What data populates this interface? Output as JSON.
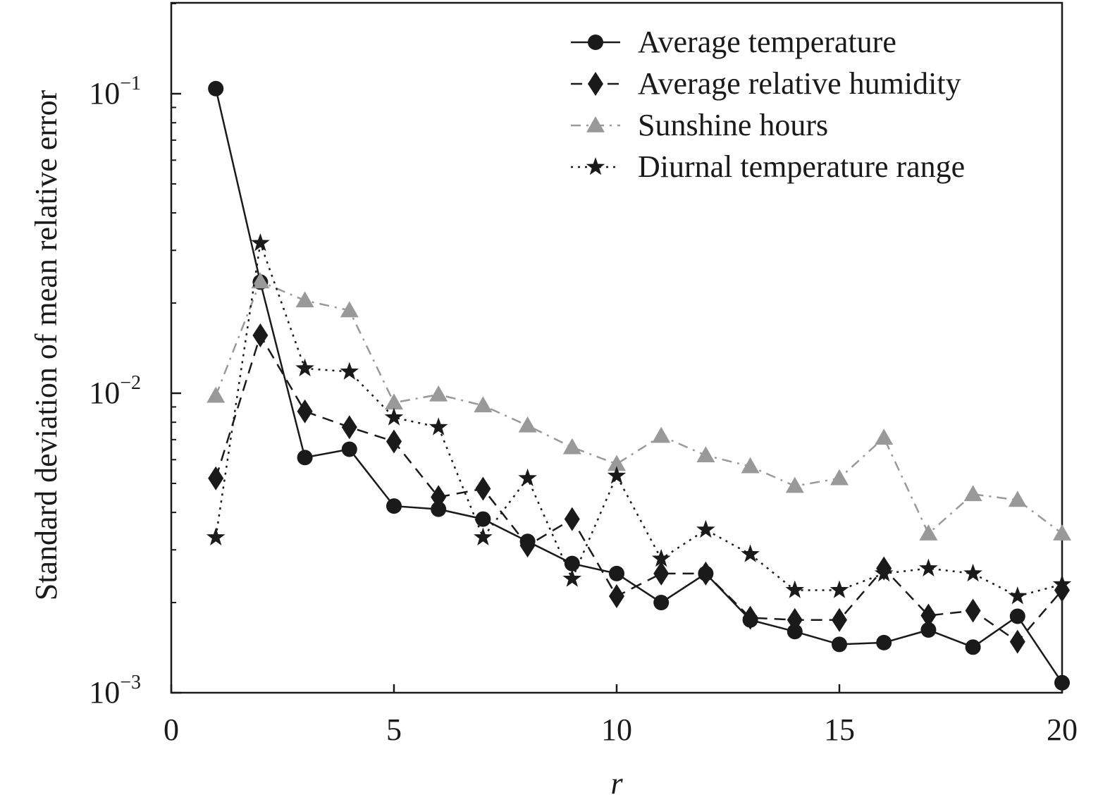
{
  "chart_data": {
    "type": "line",
    "title": "",
    "xlabel": "r",
    "ylabel": "Standard deviation of mean relative error",
    "yscale": "log",
    "xlim": [
      0,
      20
    ],
    "ylim": [
      0.001,
      0.2
    ],
    "x_ticks": [
      0,
      5,
      10,
      15,
      20
    ],
    "x_tick_labels": [
      "0",
      "5",
      "10",
      "15",
      "20"
    ],
    "y_ticks": [
      0.1,
      0.01,
      0.001
    ],
    "y_tick_labels": [
      {
        "base": "10",
        "exp": "−1"
      },
      {
        "base": "10",
        "exp": "−2"
      },
      {
        "base": "10",
        "exp": "−3"
      }
    ],
    "grid": false,
    "legend_position": "top-right",
    "x": [
      1,
      2,
      3,
      4,
      5,
      6,
      7,
      8,
      9,
      10,
      11,
      12,
      13,
      14,
      15,
      16,
      17,
      18,
      19,
      20
    ],
    "series": [
      {
        "name": "Average temperature",
        "marker": "circle",
        "dash": "solid",
        "color": "#1a1a1a",
        "values": [
          0.104,
          0.0235,
          0.0061,
          0.0065,
          0.0042,
          0.0041,
          0.0038,
          0.0032,
          0.0027,
          0.0025,
          0.002,
          0.0025,
          0.00175,
          0.0016,
          0.00145,
          0.00147,
          0.00162,
          0.00142,
          0.0018,
          0.00108
        ]
      },
      {
        "name": "Average relative humidity",
        "marker": "diamond",
        "dash": "dashed",
        "color": "#1a1a1a",
        "values": [
          0.0052,
          0.0156,
          0.0087,
          0.0077,
          0.0069,
          0.0045,
          0.0048,
          0.0031,
          0.0038,
          0.0021,
          0.0025,
          0.0025,
          0.00178,
          0.00175,
          0.00175,
          0.0026,
          0.00181,
          0.00188,
          0.00148,
          0.0022
        ]
      },
      {
        "name": "Sunshine hours",
        "marker": "triangle",
        "dash": "dashdot",
        "color": "#999999",
        "values": [
          0.0098,
          0.0236,
          0.0204,
          0.0189,
          0.0093,
          0.0099,
          0.0091,
          0.0078,
          0.0066,
          0.0058,
          0.0072,
          0.0062,
          0.0057,
          0.0049,
          0.0052,
          0.0071,
          0.0034,
          0.0046,
          0.0044,
          0.0034
        ]
      },
      {
        "name": "Diurnal temperature range",
        "marker": "star",
        "dash": "dotted",
        "color": "#1a1a1a",
        "values": [
          0.0033,
          0.0317,
          0.0121,
          0.0118,
          0.0083,
          0.0077,
          0.0033,
          0.0052,
          0.0024,
          0.0053,
          0.0028,
          0.0035,
          0.0029,
          0.0022,
          0.0022,
          0.0025,
          0.0026,
          0.0025,
          0.0021,
          0.0023
        ]
      }
    ]
  }
}
